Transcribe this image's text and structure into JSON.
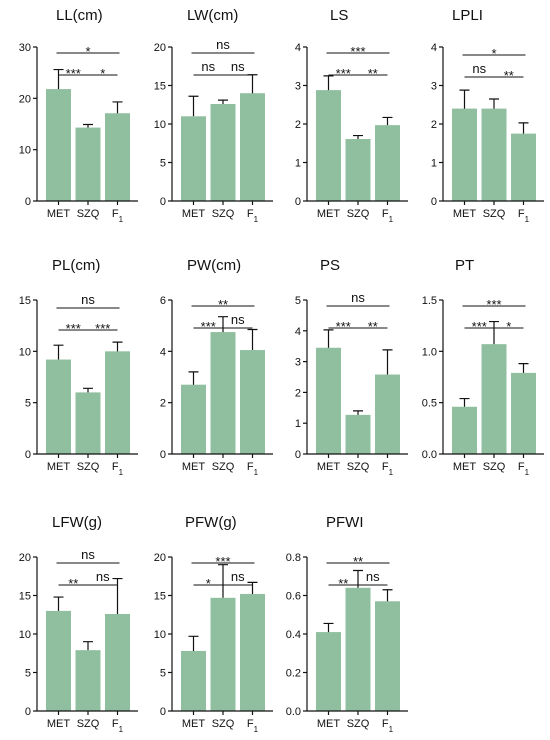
{
  "chart_data": [
    {
      "type": "bar",
      "title": "LL(cm)",
      "categories": [
        "MET",
        "SZQ",
        "F1"
      ],
      "values": [
        21.8,
        14.3,
        17.1
      ],
      "errors": [
        3.8,
        0.6,
        2.2
      ],
      "ylim": [
        0,
        30
      ],
      "yticks": [
        0,
        10,
        20,
        30
      ],
      "significance": [
        {
          "pair": [
            0,
            1
          ],
          "label": "***"
        },
        {
          "pair": [
            1,
            2
          ],
          "label": "*"
        },
        {
          "pair": [
            0,
            2
          ],
          "label": "*"
        }
      ]
    },
    {
      "type": "bar",
      "title": "LW(cm)",
      "categories": [
        "MET",
        "SZQ",
        "F1"
      ],
      "values": [
        11.0,
        12.6,
        14.0
      ],
      "errors": [
        2.6,
        0.5,
        2.4
      ],
      "ylim": [
        0,
        20
      ],
      "yticks": [
        0,
        5,
        10,
        15,
        20
      ],
      "significance": [
        {
          "pair": [
            0,
            1
          ],
          "label": "ns"
        },
        {
          "pair": [
            1,
            2
          ],
          "label": "ns"
        },
        {
          "pair": [
            0,
            2
          ],
          "label": "ns"
        }
      ]
    },
    {
      "type": "bar",
      "title": "LS",
      "categories": [
        "MET",
        "SZQ",
        "F1"
      ],
      "values": [
        2.88,
        1.61,
        1.97
      ],
      "errors": [
        0.37,
        0.09,
        0.2
      ],
      "ylim": [
        0,
        4
      ],
      "yticks": [
        0,
        1,
        2,
        3,
        4
      ],
      "significance": [
        {
          "pair": [
            0,
            1
          ],
          "label": "***"
        },
        {
          "pair": [
            1,
            2
          ],
          "label": "**"
        },
        {
          "pair": [
            0,
            2
          ],
          "label": "***"
        }
      ]
    },
    {
      "type": "bar",
      "title": "LPLI",
      "categories": [
        "MET",
        "SZQ",
        "F1"
      ],
      "values": [
        2.4,
        2.4,
        1.75
      ],
      "errors": [
        0.48,
        0.25,
        0.28
      ],
      "ylim": [
        0,
        4
      ],
      "yticks": [
        0,
        1,
        2,
        3,
        4
      ],
      "significance": [
        {
          "pair": [
            0,
            1
          ],
          "label": "ns"
        },
        {
          "pair": [
            1,
            2
          ],
          "label": "**"
        },
        {
          "pair": [
            0,
            2
          ],
          "label": "*"
        }
      ]
    },
    {
      "type": "bar",
      "title": "PL(cm)",
      "categories": [
        "MET",
        "SZQ",
        "F1"
      ],
      "values": [
        9.2,
        6.0,
        10.0
      ],
      "errors": [
        1.4,
        0.4,
        0.9
      ],
      "ylim": [
        0,
        15
      ],
      "yticks": [
        0,
        5,
        10,
        15
      ],
      "significance": [
        {
          "pair": [
            0,
            1
          ],
          "label": "***"
        },
        {
          "pair": [
            1,
            2
          ],
          "label": "***"
        },
        {
          "pair": [
            0,
            2
          ],
          "label": "ns"
        }
      ]
    },
    {
      "type": "bar",
      "title": "PW(cm)",
      "categories": [
        "MET",
        "SZQ",
        "F1"
      ],
      "values": [
        2.7,
        4.75,
        4.05
      ],
      "errors": [
        0.5,
        0.6,
        0.8
      ],
      "ylim": [
        0,
        6
      ],
      "yticks": [
        0,
        2,
        4,
        6
      ],
      "significance": [
        {
          "pair": [
            0,
            1
          ],
          "label": "***"
        },
        {
          "pair": [
            1,
            2
          ],
          "label": "ns"
        },
        {
          "pair": [
            0,
            2
          ],
          "label": "**"
        }
      ]
    },
    {
      "type": "bar",
      "title": "PS",
      "categories": [
        "MET",
        "SZQ",
        "F1"
      ],
      "values": [
        3.45,
        1.27,
        2.58
      ],
      "errors": [
        0.58,
        0.13,
        0.8
      ],
      "ylim": [
        0,
        5
      ],
      "yticks": [
        0,
        1,
        2,
        3,
        4,
        5
      ],
      "significance": [
        {
          "pair": [
            0,
            1
          ],
          "label": "***"
        },
        {
          "pair": [
            1,
            2
          ],
          "label": "**"
        },
        {
          "pair": [
            0,
            2
          ],
          "label": "ns"
        }
      ]
    },
    {
      "type": "bar",
      "title": "PT",
      "categories": [
        "MET",
        "SZQ",
        "F1"
      ],
      "values": [
        0.46,
        1.07,
        0.79
      ],
      "errors": [
        0.08,
        0.22,
        0.09
      ],
      "ylim": [
        0,
        1.5
      ],
      "yticks": [
        "0.0",
        "0.5",
        "1.0",
        "1.5"
      ],
      "significance": [
        {
          "pair": [
            0,
            1
          ],
          "label": "***"
        },
        {
          "pair": [
            1,
            2
          ],
          "label": "*"
        },
        {
          "pair": [
            0,
            2
          ],
          "label": "***"
        }
      ]
    },
    {
      "type": "bar",
      "title": "LFW(g)",
      "categories": [
        "MET",
        "SZQ",
        "F1"
      ],
      "values": [
        13.0,
        7.9,
        12.6
      ],
      "errors": [
        1.8,
        1.1,
        4.6
      ],
      "ylim": [
        0,
        20
      ],
      "yticks": [
        0,
        5,
        10,
        15,
        20
      ],
      "significance": [
        {
          "pair": [
            0,
            1
          ],
          "label": "**"
        },
        {
          "pair": [
            1,
            2
          ],
          "label": "ns"
        },
        {
          "pair": [
            0,
            2
          ],
          "label": "ns"
        }
      ]
    },
    {
      "type": "bar",
      "title": "PFW(g)",
      "categories": [
        "MET",
        "SZQ",
        "F1"
      ],
      "values": [
        7.8,
        14.7,
        15.2
      ],
      "errors": [
        1.9,
        4.3,
        1.5
      ],
      "ylim": [
        0,
        20
      ],
      "yticks": [
        0,
        5,
        10,
        15,
        20
      ],
      "significance": [
        {
          "pair": [
            0,
            1
          ],
          "label": "*"
        },
        {
          "pair": [
            1,
            2
          ],
          "label": "ns"
        },
        {
          "pair": [
            0,
            2
          ],
          "label": "***"
        }
      ]
    },
    {
      "type": "bar",
      "title": "PFWI",
      "categories": [
        "MET",
        "SZQ",
        "F1"
      ],
      "values": [
        0.41,
        0.64,
        0.57
      ],
      "errors": [
        0.045,
        0.09,
        0.06
      ],
      "ylim": [
        0,
        0.8
      ],
      "yticks": [
        "0.0",
        "0.2",
        "0.4",
        "0.6",
        "0.8"
      ],
      "significance": [
        {
          "pair": [
            0,
            1
          ],
          "label": "**"
        },
        {
          "pair": [
            1,
            2
          ],
          "label": "ns"
        },
        {
          "pair": [
            0,
            2
          ],
          "label": "**"
        }
      ]
    }
  ],
  "style": {
    "bar_color": "#8fbf9f",
    "axis_color": "#111111"
  }
}
